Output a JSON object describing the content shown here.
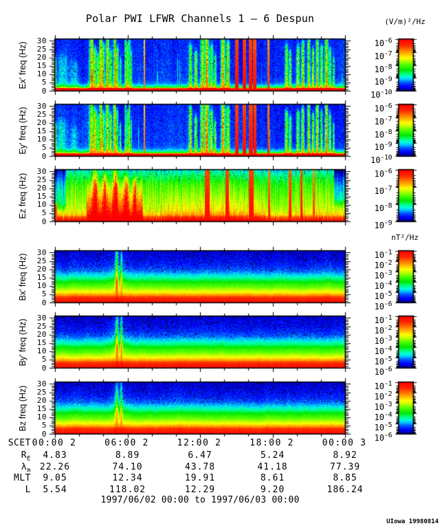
{
  "chart_data": {
    "type": "heatmap",
    "title": "Polar PWI LFWR Channels 1 — 6 Despun",
    "e_units": "(V/m)²/Hz",
    "b_units": "nT²/Hz",
    "x_axis": {
      "label": "SCET",
      "start": "1997/06/02 00:00",
      "end": "1997/06/03 00:00",
      "hours_span": 24,
      "major_tick_hours": [
        0,
        6,
        12,
        18,
        24
      ],
      "minor_tick_step_hours": 2,
      "tick_labels": [
        {
          "time": "00:00",
          "day": "2"
        },
        {
          "time": "06:00",
          "day": "2"
        },
        {
          "time": "12:00",
          "day": "2"
        },
        {
          "time": "18:00",
          "day": "2"
        },
        {
          "time": "00:00",
          "day": "3"
        }
      ]
    },
    "y_axis": {
      "range_hz": [
        0,
        31
      ],
      "ticks": [
        "0",
        "5",
        "10",
        "15",
        "20",
        "25",
        "30"
      ],
      "minor_tick_step_hz": 1
    },
    "panels": [
      {
        "id": "ex",
        "ylabel": "Ex' freq (Hz)",
        "kind": "E",
        "seed": 11,
        "cb_exponents": [
          "-6",
          "-7",
          "-8",
          "-9",
          "-10"
        ],
        "profile": [
          [
            0,
            0.97
          ],
          [
            1.3,
            0.95
          ],
          [
            1.7,
            0.58
          ],
          [
            2.2,
            0.38
          ],
          [
            3,
            0.28
          ],
          [
            4,
            0.19
          ],
          [
            5.5,
            0.14
          ],
          [
            9,
            0.12
          ],
          [
            31,
            0.1
          ]
        ],
        "streaks": [
          [
            0.07,
            0.05,
            0.3,
            18
          ],
          [
            0.6,
            0.3,
            0.13,
            20
          ],
          [
            1.6,
            0.25,
            0.1,
            16
          ],
          [
            3.05,
            0.12,
            0.62,
            31
          ],
          [
            3.3,
            0.09,
            0.5,
            24
          ],
          [
            3.55,
            0.07,
            0.42,
            20
          ],
          [
            3.8,
            0.11,
            0.65,
            31
          ],
          [
            4.0,
            0.07,
            0.5,
            26
          ],
          [
            4.35,
            0.09,
            0.6,
            31
          ],
          [
            4.6,
            0.07,
            0.48,
            22
          ],
          [
            4.95,
            0.09,
            0.62,
            31
          ],
          [
            5.15,
            0.06,
            0.45,
            24
          ],
          [
            5.4,
            0.05,
            0.33,
            18
          ],
          [
            5.85,
            0.05,
            0.5,
            31
          ],
          [
            6.0,
            0.05,
            0.52,
            28
          ],
          [
            6.15,
            0.05,
            0.48,
            31
          ],
          [
            6.3,
            0.04,
            0.4,
            22
          ],
          [
            11.2,
            0.08,
            0.48,
            26
          ],
          [
            11.65,
            0.08,
            0.44,
            22
          ],
          [
            12.2,
            0.1,
            0.6,
            31
          ],
          [
            12.55,
            0.11,
            0.7,
            31
          ],
          [
            12.95,
            0.08,
            0.5,
            26
          ],
          [
            13.25,
            0.06,
            0.4,
            20
          ],
          [
            13.9,
            0.11,
            0.66,
            31
          ],
          [
            14.3,
            0.09,
            0.6,
            28
          ],
          [
            19.15,
            0.08,
            0.5,
            26
          ],
          [
            19.45,
            0.06,
            0.44,
            22
          ],
          [
            20.1,
            0.08,
            0.48,
            25
          ],
          [
            20.5,
            0.08,
            0.52,
            28
          ],
          [
            21.0,
            0.08,
            0.55,
            31
          ],
          [
            21.35,
            0.07,
            0.5,
            24
          ],
          [
            21.7,
            0.08,
            0.58,
            31
          ],
          [
            22.05,
            0.07,
            0.5,
            26
          ],
          [
            22.45,
            0.09,
            0.62,
            31
          ],
          [
            22.75,
            0.06,
            0.45,
            24
          ],
          [
            23.05,
            0.05,
            0.35,
            18
          ]
        ],
        "columns": [
          [
            7.4,
            0.09,
            0.8,
            31
          ],
          [
            15.05,
            0.3,
            0.97,
            31
          ],
          [
            15.65,
            0.28,
            0.97,
            31
          ],
          [
            16.2,
            0.3,
            0.97,
            31
          ],
          [
            16.5,
            0.28,
            0.95,
            31
          ],
          [
            17.65,
            0.14,
            0.88,
            31
          ]
        ]
      },
      {
        "id": "ey",
        "ylabel": "Ey' freq (Hz)",
        "kind": "E",
        "seed": 23,
        "cb_exponents": [
          "-6",
          "-7",
          "-8",
          "-9",
          "-10"
        ],
        "profile": [
          [
            0,
            0.97
          ],
          [
            1.3,
            0.95
          ],
          [
            1.7,
            0.58
          ],
          [
            2.2,
            0.38
          ],
          [
            3,
            0.28
          ],
          [
            4,
            0.19
          ],
          [
            5.5,
            0.14
          ],
          [
            9,
            0.12
          ],
          [
            31,
            0.1
          ]
        ],
        "streaks": [
          [
            0.07,
            0.05,
            0.3,
            18
          ],
          [
            0.6,
            0.3,
            0.13,
            20
          ],
          [
            1.6,
            0.25,
            0.1,
            16
          ],
          [
            3.05,
            0.12,
            0.6,
            31
          ],
          [
            3.3,
            0.09,
            0.52,
            26
          ],
          [
            3.55,
            0.07,
            0.47,
            22
          ],
          [
            3.8,
            0.11,
            0.63,
            31
          ],
          [
            4.0,
            0.07,
            0.52,
            24
          ],
          [
            4.35,
            0.09,
            0.58,
            31
          ],
          [
            4.6,
            0.07,
            0.52,
            24
          ],
          [
            4.95,
            0.09,
            0.6,
            31
          ],
          [
            5.15,
            0.06,
            0.47,
            26
          ],
          [
            5.4,
            0.05,
            0.37,
            18
          ],
          [
            5.85,
            0.05,
            0.52,
            31
          ],
          [
            6.0,
            0.05,
            0.53,
            26
          ],
          [
            6.15,
            0.05,
            0.48,
            31
          ],
          [
            6.3,
            0.04,
            0.42,
            20
          ],
          [
            11.2,
            0.08,
            0.52,
            28
          ],
          [
            11.65,
            0.08,
            0.47,
            22
          ],
          [
            12.2,
            0.1,
            0.6,
            31
          ],
          [
            12.55,
            0.11,
            0.72,
            31
          ],
          [
            12.95,
            0.08,
            0.52,
            26
          ],
          [
            13.25,
            0.06,
            0.42,
            20
          ],
          [
            13.9,
            0.11,
            0.66,
            31
          ],
          [
            14.3,
            0.09,
            0.62,
            28
          ],
          [
            19.15,
            0.08,
            0.52,
            26
          ],
          [
            19.45,
            0.06,
            0.47,
            22
          ],
          [
            20.1,
            0.08,
            0.5,
            26
          ],
          [
            20.5,
            0.08,
            0.54,
            28
          ],
          [
            21.0,
            0.08,
            0.57,
            31
          ],
          [
            21.35,
            0.07,
            0.52,
            24
          ],
          [
            21.7,
            0.08,
            0.6,
            31
          ],
          [
            22.05,
            0.07,
            0.52,
            26
          ],
          [
            22.45,
            0.09,
            0.64,
            31
          ],
          [
            22.75,
            0.06,
            0.47,
            24
          ],
          [
            23.05,
            0.05,
            0.37,
            18
          ]
        ],
        "columns": [
          [
            7.4,
            0.09,
            0.82,
            31
          ],
          [
            15.05,
            0.3,
            0.97,
            31
          ],
          [
            15.65,
            0.3,
            0.97,
            31
          ],
          [
            16.2,
            0.32,
            0.97,
            31
          ],
          [
            16.55,
            0.28,
            0.96,
            31
          ],
          [
            17.65,
            0.16,
            0.9,
            31
          ]
        ]
      },
      {
        "id": "ez",
        "ylabel": "Ez freq (Hz)",
        "kind": "EZ",
        "seed": 37,
        "cb_exponents": [
          "-6",
          "-7",
          "-8",
          "-9"
        ],
        "profile": [
          [
            0,
            0.97
          ],
          [
            2,
            0.88
          ],
          [
            4,
            0.69
          ],
          [
            7,
            0.6
          ],
          [
            12,
            0.55
          ],
          [
            18,
            0.5
          ],
          [
            22,
            0.46
          ],
          [
            26,
            0.38
          ],
          [
            31,
            0.26
          ]
        ],
        "envelopes": [
          [
            2.6,
            7.3,
            0.34,
            27
          ],
          [
            8.8,
            17.4,
            0.07,
            26
          ]
        ],
        "cools": [
          [
            0,
            0.9,
            0.22,
            5
          ],
          [
            23.1,
            24.2,
            0.25,
            8
          ]
        ],
        "streaks": [
          [
            3.3,
            0.15,
            0.4,
            31
          ],
          [
            4.1,
            0.12,
            0.35,
            28
          ],
          [
            5.0,
            0.15,
            0.4,
            31
          ],
          [
            5.9,
            0.12,
            0.35,
            26
          ],
          [
            6.6,
            0.1,
            0.32,
            24
          ]
        ],
        "columns": [
          [
            0.1,
            0.15,
            0.85,
            9
          ],
          [
            3.35,
            0.2,
            0.93,
            20
          ],
          [
            4.15,
            0.16,
            0.9,
            16
          ],
          [
            5.05,
            0.2,
            0.93,
            22
          ],
          [
            5.95,
            0.16,
            0.9,
            18
          ],
          [
            6.65,
            0.14,
            0.88,
            15
          ],
          [
            12.6,
            0.38,
            0.97,
            31
          ],
          [
            14.25,
            0.3,
            0.97,
            31
          ],
          [
            16.25,
            0.38,
            0.97,
            31
          ],
          [
            17.7,
            0.16,
            0.9,
            31
          ],
          [
            19.45,
            0.2,
            0.93,
            31
          ],
          [
            20.4,
            0.2,
            0.95,
            31
          ],
          [
            21.4,
            0.15,
            0.88,
            31
          ]
        ]
      },
      {
        "id": "bx",
        "ylabel": "Bx' freq (Hz)",
        "kind": "B",
        "seed": 51,
        "cb_exponents": [
          "-1",
          "-2",
          "-3",
          "-4",
          "-5",
          "-6"
        ],
        "profile": [
          [
            0,
            0.96
          ],
          [
            3,
            0.88
          ],
          [
            4.5,
            0.75
          ],
          [
            6.5,
            0.62
          ],
          [
            9,
            0.52
          ],
          [
            11.5,
            0.44
          ],
          [
            14,
            0.33
          ],
          [
            16.5,
            0.24
          ],
          [
            19,
            0.16
          ],
          [
            22,
            0.11
          ],
          [
            26,
            0.075
          ],
          [
            31,
            0.05
          ]
        ],
        "plumes": [
          [
            5.12,
            0.09,
            0.5
          ],
          [
            5.5,
            0.055,
            0.44
          ],
          [
            5.3,
            0.5,
            0.1
          ]
        ],
        "cores": [
          [
            5.12
          ],
          [
            5.5
          ]
        ]
      },
      {
        "id": "by",
        "ylabel": "By' freq (Hz)",
        "kind": "B",
        "seed": 63,
        "cb_exponents": [
          "-1",
          "-2",
          "-3",
          "-4",
          "-5",
          "-6"
        ],
        "profile": [
          [
            0,
            0.96
          ],
          [
            3,
            0.88
          ],
          [
            4.5,
            0.75
          ],
          [
            6.5,
            0.62
          ],
          [
            9,
            0.52
          ],
          [
            11.5,
            0.44
          ],
          [
            14,
            0.33
          ],
          [
            16.5,
            0.24
          ],
          [
            19,
            0.16
          ],
          [
            22,
            0.11
          ],
          [
            26,
            0.075
          ],
          [
            31,
            0.05
          ]
        ],
        "plumes": [
          [
            5.12,
            0.09,
            0.47
          ],
          [
            5.5,
            0.055,
            0.42
          ],
          [
            5.3,
            0.5,
            0.1
          ]
        ],
        "cores": [
          [
            5.12
          ],
          [
            5.5
          ]
        ]
      },
      {
        "id": "bz",
        "ylabel": "Bz freq (Hz)",
        "kind": "B",
        "seed": 77,
        "cb_exponents": [
          "-1",
          "-2",
          "-3",
          "-4",
          "-5",
          "-6"
        ],
        "profile": [
          [
            0,
            0.96
          ],
          [
            3,
            0.88
          ],
          [
            4.5,
            0.75
          ],
          [
            6.5,
            0.62
          ],
          [
            9,
            0.52
          ],
          [
            11.5,
            0.44
          ],
          [
            14,
            0.33
          ],
          [
            16.5,
            0.24
          ],
          [
            19,
            0.16
          ],
          [
            22,
            0.11
          ],
          [
            26,
            0.075
          ],
          [
            31,
            0.05
          ]
        ],
        "plumes": [
          [
            5.12,
            0.09,
            0.45
          ],
          [
            5.5,
            0.055,
            0.4
          ],
          [
            5.3,
            0.5,
            0.09
          ]
        ],
        "cores": [
          [
            5.12
          ],
          [
            5.5
          ]
        ]
      }
    ],
    "colormap_stops": [
      [
        0.0,
        0,
        0,
        130
      ],
      [
        0.08,
        0,
        0,
        255
      ],
      [
        0.16,
        0,
        90,
        255
      ],
      [
        0.22,
        0,
        200,
        255
      ],
      [
        0.27,
        0,
        255,
        220
      ],
      [
        0.33,
        0,
        255,
        120
      ],
      [
        0.4,
        0,
        230,
        0
      ],
      [
        0.5,
        80,
        255,
        0
      ],
      [
        0.58,
        190,
        255,
        0
      ],
      [
        0.64,
        255,
        255,
        0
      ],
      [
        0.72,
        255,
        180,
        0
      ],
      [
        0.8,
        255,
        110,
        0
      ],
      [
        0.88,
        255,
        40,
        0
      ],
      [
        1.0,
        255,
        0,
        0
      ]
    ],
    "ephemeris_rows": [
      {
        "label": {
          "main": "R",
          "sub": "E"
        },
        "values": [
          "4.83",
          "8.89",
          "6.47",
          "5.24",
          "8.92"
        ]
      },
      {
        "label": {
          "main": "λ",
          "sub": "m"
        },
        "values": [
          "22.26",
          "74.10",
          "43.78",
          "41.18",
          "77.39"
        ]
      },
      {
        "label": {
          "main": "MLT",
          "sub": ""
        },
        "values": [
          "9.05",
          "12.34",
          "19.91",
          "8.61",
          "8.85"
        ]
      },
      {
        "label": {
          "main": "L",
          "sub": ""
        },
        "values": [
          "5.54",
          "118.02",
          "12.29",
          "9.20",
          "186.24"
        ]
      }
    ],
    "footer": {
      "date_range": "1997/06/02 00:00 to 1997/06/03 00:00",
      "credit": "UIowa 19980814"
    }
  }
}
